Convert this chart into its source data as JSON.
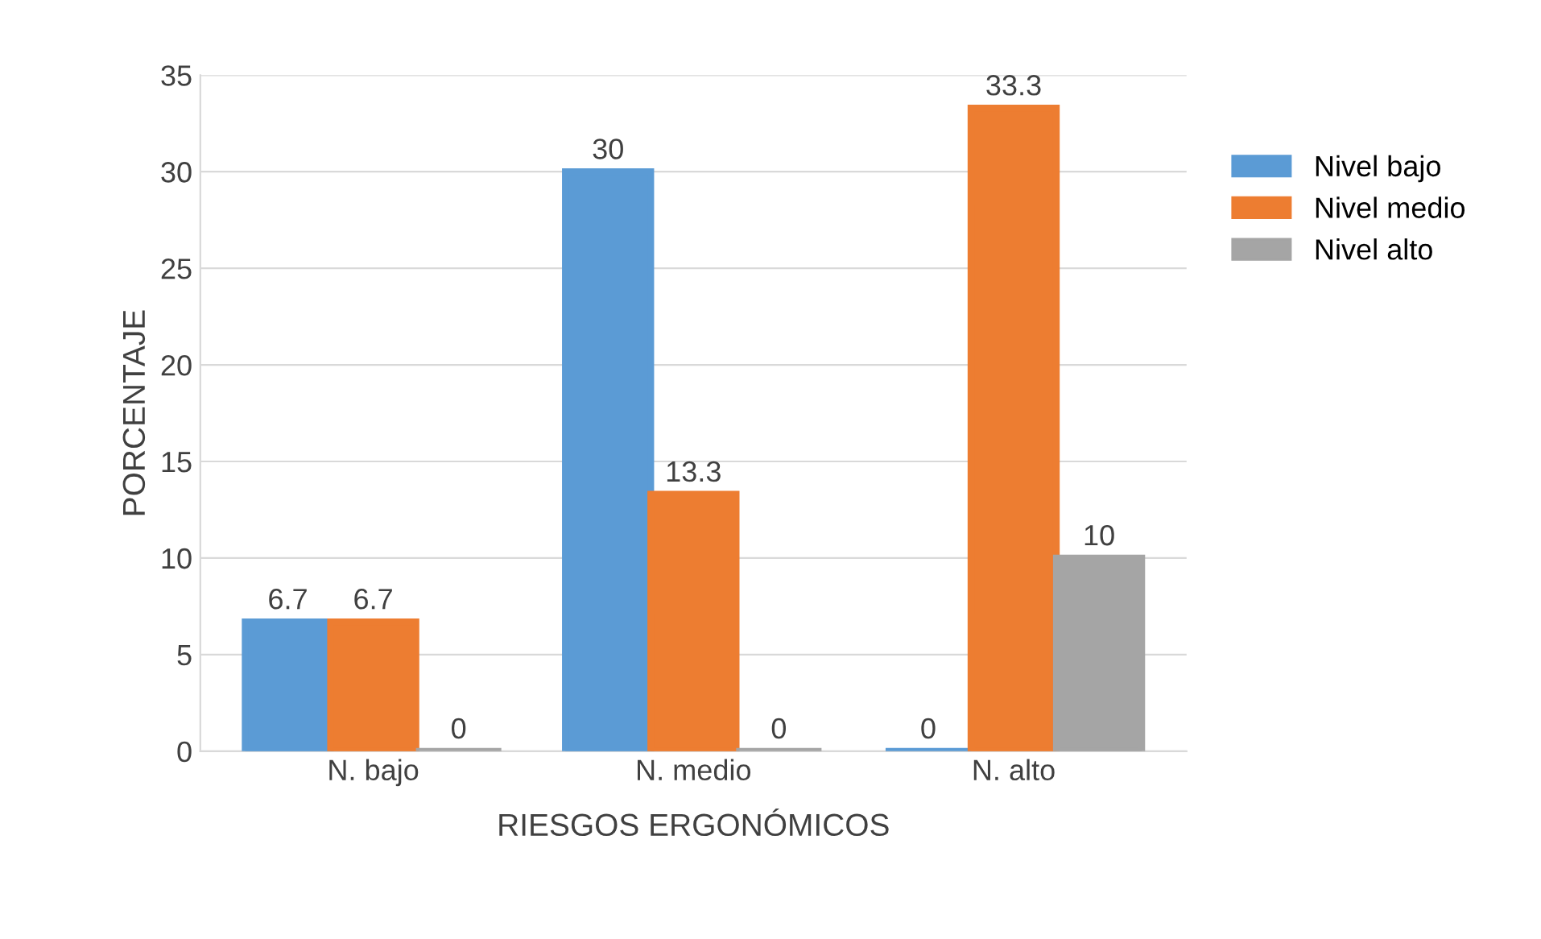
{
  "chart_data": {
    "type": "bar",
    "xlabel": "RIESGOS ERGONÓMICOS",
    "ylabel": "PORCENTAJE",
    "categories": [
      "N. bajo",
      "N. medio",
      "N. alto"
    ],
    "series": [
      {
        "name": "Nivel bajo",
        "color": "#5b9bd5",
        "values": [
          6.7,
          30,
          0
        ]
      },
      {
        "name": "Nivel medio",
        "color": "#ed7d31",
        "values": [
          6.7,
          13.3,
          33.3
        ]
      },
      {
        "name": "Nivel alto",
        "color": "#a5a5a5",
        "values": [
          0,
          0,
          10
        ]
      }
    ],
    "ylim": [
      0,
      35
    ],
    "yticks": [
      0,
      5,
      10,
      15,
      20,
      25,
      30,
      35
    ],
    "grid": "y",
    "legend": "right",
    "data_labels": true
  }
}
